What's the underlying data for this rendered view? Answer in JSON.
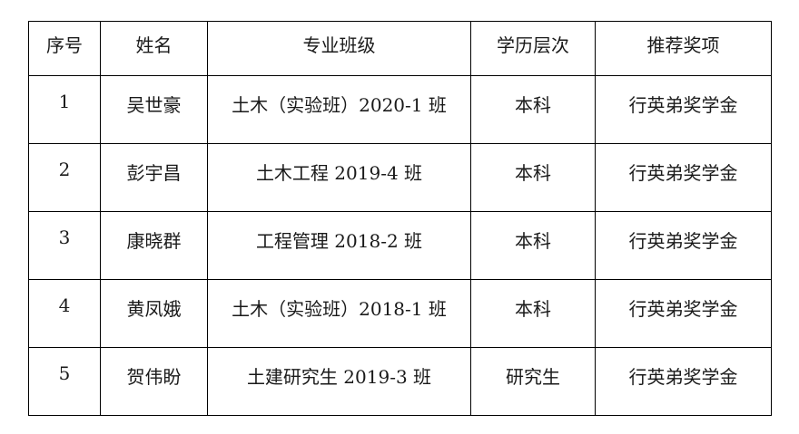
{
  "table": {
    "headers": [
      "序号",
      "姓名",
      "专业班级",
      "学历层次",
      "推荐奖项"
    ],
    "rows": [
      [
        "1",
        "吴世豪",
        "土木（实验班）2020-1 班",
        "本科",
        "行英弟奖学金"
      ],
      [
        "2",
        "彭宇昌",
        "土木工程 2019-4 班",
        "本科",
        "行英弟奖学金"
      ],
      [
        "3",
        "康晓群",
        "工程管理 2018-2 班",
        "本科",
        "行英弟奖学金"
      ],
      [
        "4",
        "黄凤娥",
        "土木（实验班）2018-1 班",
        "本科",
        "行英弟奖学金"
      ],
      [
        "5",
        "贺伟盼",
        "土建研究生 2019-3 班",
        "研究生",
        "行英弟奖学金"
      ]
    ]
  }
}
